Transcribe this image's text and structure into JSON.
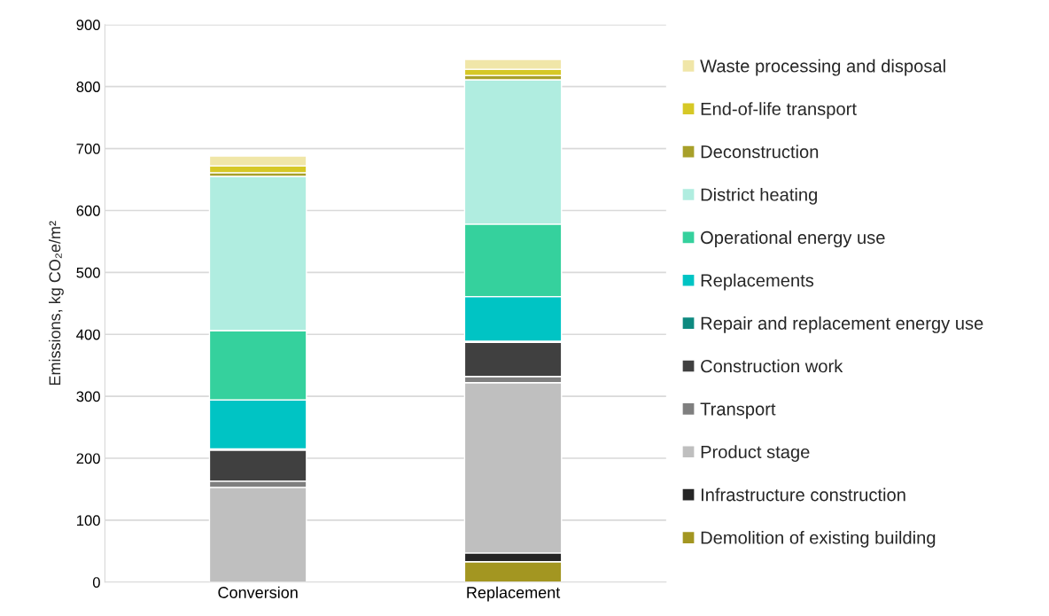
{
  "chart_data": {
    "type": "bar",
    "stacked": true,
    "ylabel": "Emissions, kg CO₂e/m²",
    "categories": [
      "Conversion",
      "Replacement"
    ],
    "ylim": [
      0,
      900
    ],
    "yticks": [
      0,
      100,
      200,
      300,
      400,
      500,
      600,
      700,
      800,
      900
    ],
    "grid": "y",
    "legend": "right",
    "series": [
      {
        "name": "Demolition of existing building",
        "color": "#a39621",
        "values": [
          0,
          33
        ]
      },
      {
        "name": "Infrastructure construction",
        "color": "#262626",
        "values": [
          0,
          14
        ]
      },
      {
        "name": "Product stage",
        "color": "#bfbfbf",
        "values": [
          153,
          275
        ]
      },
      {
        "name": "Transport",
        "color": "#7f7f7f",
        "values": [
          10,
          10
        ]
      },
      {
        "name": "Construction work",
        "color": "#404040",
        "values": [
          50,
          55
        ]
      },
      {
        "name": "Repair and replacement energy use",
        "color": "#0e8a80",
        "values": [
          2,
          2
        ]
      },
      {
        "name": "Replacements",
        "color": "#00c4c4",
        "values": [
          79,
          72
        ]
      },
      {
        "name": "Operational energy use",
        "color": "#35d19d",
        "values": [
          112,
          117
        ]
      },
      {
        "name": "District heating",
        "color": "#b0ede0",
        "values": [
          249,
          233
        ]
      },
      {
        "name": "Deconstruction",
        "color": "#a8a02a",
        "values": [
          6,
          7
        ]
      },
      {
        "name": "End-of-life transport",
        "color": "#d6c826",
        "values": [
          11,
          10
        ]
      },
      {
        "name": "Waste processing and disposal",
        "color": "#f0e6a8",
        "values": [
          16,
          16
        ]
      }
    ]
  }
}
